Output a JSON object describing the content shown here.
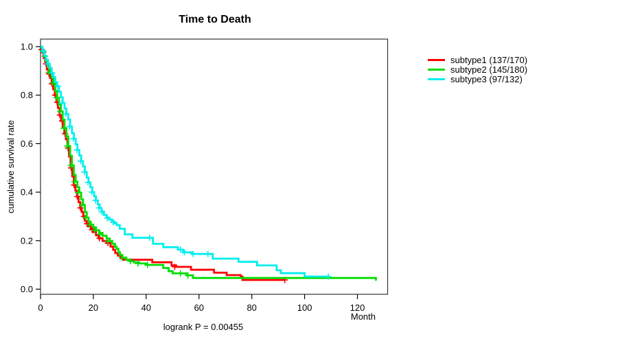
{
  "chart_data": {
    "type": "line",
    "subtype": "kaplan-meier-step",
    "title": "Time to Death",
    "xlabel": "Month",
    "ylabel": "cumulative survival rate",
    "footnote": "logrank P = 0.00455",
    "x_ticks": [
      0,
      20,
      40,
      60,
      80,
      100,
      120
    ],
    "y_ticks": [
      0.0,
      0.2,
      0.4,
      0.6,
      0.8,
      1.0
    ],
    "xlim": [
      0,
      131
    ],
    "ylim": [
      0,
      1
    ],
    "grid": false,
    "legend_position": "right-outside",
    "box_color": "#333333",
    "series": [
      {
        "name": "subtype1",
        "label": "subtype1 (137/170)",
        "color": "#FF0000",
        "steps": [
          [
            0,
            1.0
          ],
          [
            0.6,
            0.976
          ],
          [
            1.2,
            0.953
          ],
          [
            1.8,
            0.929
          ],
          [
            2.4,
            0.906
          ],
          [
            3,
            0.888
          ],
          [
            3.6,
            0.871
          ],
          [
            4.2,
            0.847
          ],
          [
            4.8,
            0.824
          ],
          [
            5.4,
            0.8
          ],
          [
            6,
            0.771
          ],
          [
            6.6,
            0.747
          ],
          [
            7.2,
            0.718
          ],
          [
            7.8,
            0.694
          ],
          [
            8.4,
            0.665
          ],
          [
            9,
            0.641
          ],
          [
            9.6,
            0.618
          ],
          [
            10.2,
            0.582
          ],
          [
            10.8,
            0.547
          ],
          [
            11.4,
            0.5
          ],
          [
            12,
            0.465
          ],
          [
            12.6,
            0.429
          ],
          [
            13.2,
            0.406
          ],
          [
            13.8,
            0.382
          ],
          [
            14.4,
            0.359
          ],
          [
            15,
            0.335
          ],
          [
            15.6,
            0.318
          ],
          [
            16.2,
            0.3
          ],
          [
            16.8,
            0.282
          ],
          [
            17.4,
            0.27
          ],
          [
            18,
            0.259
          ],
          [
            19,
            0.247
          ],
          [
            20,
            0.235
          ],
          [
            21,
            0.222
          ],
          [
            22,
            0.21
          ],
          [
            23.5,
            0.199
          ],
          [
            25,
            0.19
          ],
          [
            26.5,
            0.176
          ],
          [
            27.5,
            0.162
          ],
          [
            28.3,
            0.149
          ],
          [
            29.3,
            0.138
          ],
          [
            30.3,
            0.128
          ],
          [
            31.2,
            0.121
          ],
          [
            42.3,
            0.111
          ],
          [
            49.6,
            0.098
          ],
          [
            51.4,
            0.092
          ],
          [
            57,
            0.08
          ],
          [
            65.7,
            0.068
          ],
          [
            70.5,
            0.058
          ],
          [
            75.8,
            0.052
          ],
          [
            76.5,
            0.038
          ],
          [
            92.5,
            0.038
          ]
        ],
        "censors": [
          [
            0.4,
            0.988
          ],
          [
            1,
            0.976
          ],
          [
            2.1,
            0.929
          ],
          [
            3.2,
            0.888
          ],
          [
            4.3,
            0.847
          ],
          [
            5.5,
            0.8
          ],
          [
            6.3,
            0.771
          ],
          [
            7.3,
            0.718
          ],
          [
            8.2,
            0.694
          ],
          [
            9.3,
            0.641
          ],
          [
            10.4,
            0.582
          ],
          [
            11.6,
            0.5
          ],
          [
            12.7,
            0.429
          ],
          [
            13.9,
            0.382
          ],
          [
            15.1,
            0.335
          ],
          [
            16.4,
            0.3
          ],
          [
            17.6,
            0.27
          ],
          [
            19.5,
            0.245
          ],
          [
            22.3,
            0.21
          ],
          [
            25.5,
            0.19
          ],
          [
            50.8,
            0.092
          ],
          [
            92.5,
            0.038
          ]
        ]
      },
      {
        "name": "subtype2",
        "label": "subtype2 (145/180)",
        "color": "#00DD00",
        "steps": [
          [
            0,
            1.0
          ],
          [
            0.7,
            0.983
          ],
          [
            1.4,
            0.961
          ],
          [
            2.1,
            0.939
          ],
          [
            2.8,
            0.917
          ],
          [
            3.5,
            0.894
          ],
          [
            4.2,
            0.872
          ],
          [
            4.9,
            0.85
          ],
          [
            5.6,
            0.817
          ],
          [
            6.3,
            0.789
          ],
          [
            7,
            0.761
          ],
          [
            7.7,
            0.733
          ],
          [
            8.4,
            0.699
          ],
          [
            9.1,
            0.664
          ],
          [
            9.8,
            0.63
          ],
          [
            10.5,
            0.59
          ],
          [
            11.2,
            0.55
          ],
          [
            11.9,
            0.51
          ],
          [
            12.6,
            0.471
          ],
          [
            13.3,
            0.443
          ],
          [
            14,
            0.42
          ],
          [
            14.7,
            0.398
          ],
          [
            15.4,
            0.37
          ],
          [
            16.1,
            0.347
          ],
          [
            16.8,
            0.318
          ],
          [
            17.5,
            0.295
          ],
          [
            18.2,
            0.278
          ],
          [
            19,
            0.266
          ],
          [
            20,
            0.255
          ],
          [
            21,
            0.243
          ],
          [
            22.2,
            0.232
          ],
          [
            23.5,
            0.22
          ],
          [
            25,
            0.209
          ],
          [
            26.2,
            0.198
          ],
          [
            27.2,
            0.187
          ],
          [
            28.2,
            0.175
          ],
          [
            28.8,
            0.166
          ],
          [
            29.5,
            0.152
          ],
          [
            30.1,
            0.141
          ],
          [
            31,
            0.13
          ],
          [
            32.5,
            0.121
          ],
          [
            34,
            0.115
          ],
          [
            35.5,
            0.11
          ],
          [
            37.4,
            0.106
          ],
          [
            40,
            0.1
          ],
          [
            46.5,
            0.087
          ],
          [
            48.5,
            0.074
          ],
          [
            50,
            0.065
          ],
          [
            55.5,
            0.057
          ],
          [
            57.7,
            0.046
          ],
          [
            127,
            0.035
          ]
        ],
        "censors": [
          [
            0.8,
            0.983
          ],
          [
            1.6,
            0.961
          ],
          [
            3.1,
            0.894
          ],
          [
            4.6,
            0.85
          ],
          [
            6,
            0.789
          ],
          [
            7.4,
            0.733
          ],
          [
            8.8,
            0.664
          ],
          [
            10.1,
            0.59
          ],
          [
            11.5,
            0.51
          ],
          [
            12.9,
            0.443
          ],
          [
            14.2,
            0.398
          ],
          [
            15.7,
            0.347
          ],
          [
            17.1,
            0.295
          ],
          [
            18.6,
            0.266
          ],
          [
            20.5,
            0.243
          ],
          [
            22.6,
            0.226
          ],
          [
            25.5,
            0.198
          ],
          [
            30.9,
            0.13
          ],
          [
            34,
            0.115
          ],
          [
            36.9,
            0.106
          ],
          [
            40.5,
            0.1
          ],
          [
            53,
            0.065
          ],
          [
            55.8,
            0.057
          ]
        ]
      },
      {
        "name": "subtype3",
        "label": "subtype3 (97/132)",
        "color": "#00EEEE",
        "steps": [
          [
            0,
            1.0
          ],
          [
            0.7,
            0.98
          ],
          [
            1.4,
            0.963
          ],
          [
            2.1,
            0.946
          ],
          [
            2.8,
            0.929
          ],
          [
            3.5,
            0.912
          ],
          [
            4.2,
            0.891
          ],
          [
            4.9,
            0.874
          ],
          [
            5.6,
            0.854
          ],
          [
            6.3,
            0.837
          ],
          [
            7,
            0.814
          ],
          [
            7.7,
            0.791
          ],
          [
            8.4,
            0.768
          ],
          [
            9.1,
            0.745
          ],
          [
            9.8,
            0.723
          ],
          [
            10.5,
            0.7
          ],
          [
            11.2,
            0.671
          ],
          [
            11.9,
            0.643
          ],
          [
            12.6,
            0.62
          ],
          [
            13.3,
            0.597
          ],
          [
            14,
            0.574
          ],
          [
            14.7,
            0.551
          ],
          [
            15.4,
            0.528
          ],
          [
            16.1,
            0.506
          ],
          [
            16.8,
            0.483
          ],
          [
            17.5,
            0.46
          ],
          [
            18.2,
            0.44
          ],
          [
            18.9,
            0.42
          ],
          [
            19.6,
            0.4
          ],
          [
            20.3,
            0.383
          ],
          [
            21,
            0.366
          ],
          [
            21.7,
            0.349
          ],
          [
            22.4,
            0.335
          ],
          [
            23.1,
            0.32
          ],
          [
            24,
            0.306
          ],
          [
            25,
            0.295
          ],
          [
            26,
            0.287
          ],
          [
            27,
            0.279
          ],
          [
            28,
            0.272
          ],
          [
            28.8,
            0.264
          ],
          [
            30,
            0.249
          ],
          [
            31.9,
            0.226
          ],
          [
            34.8,
            0.212
          ],
          [
            42.6,
            0.187
          ],
          [
            46.5,
            0.173
          ],
          [
            52,
            0.163
          ],
          [
            54,
            0.152
          ],
          [
            57.5,
            0.145
          ],
          [
            65.2,
            0.126
          ],
          [
            75,
            0.113
          ],
          [
            82,
            0.098
          ],
          [
            89.4,
            0.078
          ],
          [
            91,
            0.066
          ],
          [
            100,
            0.052
          ],
          [
            109,
            0.052
          ]
        ],
        "censors": [
          [
            1.2,
            0.98
          ],
          [
            2.6,
            0.929
          ],
          [
            4.4,
            0.891
          ],
          [
            6.5,
            0.837
          ],
          [
            8.1,
            0.768
          ],
          [
            9.6,
            0.723
          ],
          [
            11,
            0.671
          ],
          [
            12.4,
            0.62
          ],
          [
            13.8,
            0.574
          ],
          [
            15.2,
            0.528
          ],
          [
            16.6,
            0.483
          ],
          [
            18,
            0.44
          ],
          [
            19.4,
            0.4
          ],
          [
            20.8,
            0.366
          ],
          [
            22.1,
            0.335
          ],
          [
            23.3,
            0.318
          ],
          [
            25.3,
            0.293
          ],
          [
            27.5,
            0.276
          ],
          [
            41.3,
            0.212
          ],
          [
            53,
            0.163
          ],
          [
            54.5,
            0.152
          ],
          [
            57.8,
            0.145
          ],
          [
            63.4,
            0.145
          ],
          [
            109,
            0.052
          ]
        ]
      }
    ]
  }
}
